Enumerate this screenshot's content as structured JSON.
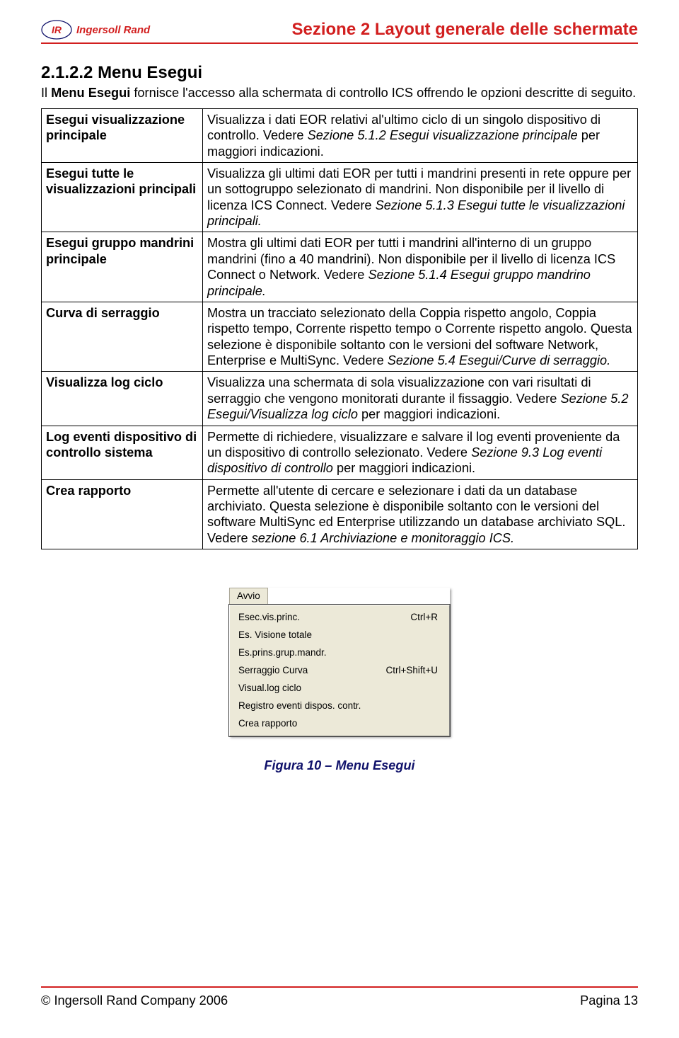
{
  "colors": {
    "accent": "#d21f1f",
    "navy": "#10126b",
    "text": "#000000",
    "menu_bg": "#ece9d8",
    "menu_border_light": "#ffffff",
    "menu_border_dark": "#808080",
    "menu_border_outer": "#404040",
    "tab_border": "#aca899"
  },
  "header": {
    "brand": "Ingersoll Rand",
    "section_title": "Sezione 2 Layout generale delle schermate"
  },
  "heading": "2.1.2.2 Menu Esegui",
  "intro_prefix": "Il ",
  "intro_bold": "Menu Esegui",
  "intro_suffix": " fornisce l'accesso alla schermata di controllo ICS offrendo le opzioni descritte di seguito.",
  "rows": [
    {
      "term": "Esegui visualizzazione principale",
      "desc_plain1": "Visualizza i dati EOR relativi al'ultimo ciclo di un singolo dispositivo di controllo. Vedere ",
      "desc_italic1": "Sezione 5.1.2 Esegui visualizzazione principale",
      "desc_plain2": "  per maggiori indicazioni."
    },
    {
      "term": "Esegui tutte le visualizzazioni principali",
      "desc_plain1": "Visualizza gli ultimi dati EOR per tutti i mandrini presenti in rete oppure per un sottogruppo selezionato di mandrini. Non disponibile per il livello di licenza ICS Connect. Vedere ",
      "desc_italic1": "Sezione 5.1.3 Esegui tutte le visualizzazioni principali.",
      "desc_plain2": ""
    },
    {
      "term": "Esegui gruppo mandrini principale",
      "desc_plain1": "Mostra gli ultimi dati EOR per tutti i mandrini all'interno di un gruppo mandrini (fino a 40 mandrini). Non disponibile per il livello di licenza ICS Connect o Network. Vedere ",
      "desc_italic1": "Sezione 5.1.4 Esegui gruppo mandrino principale.",
      "desc_plain2": ""
    },
    {
      "term": "Curva di serraggio",
      "desc_plain1": "Mostra un tracciato selezionato della Coppia rispetto angolo, Coppia rispetto tempo, Corrente rispetto tempo o Corrente rispetto angolo. Questa selezione è disponibile soltanto con le versioni del software Network, Enterprise e MultiSync. Vedere ",
      "desc_italic1": "Sezione 5.4 Esegui/Curve di serraggio.",
      "desc_plain2": ""
    },
    {
      "term": "Visualizza log ciclo",
      "desc_plain1": "Visualizza una schermata di sola visualizzazione con vari risultati di serraggio che vengono monitorati durante il fissaggio. Vedere ",
      "desc_italic1": "Sezione 5.2 Esegui/Visualizza log ciclo",
      "desc_plain2": "  per maggiori indicazioni."
    },
    {
      "term": "Log eventi dispositivo di controllo sistema",
      "desc_plain1": "Permette di richiedere, visualizzare e salvare il log eventi proveniente da un dispositivo di controllo selezionato. Vedere ",
      "desc_italic1": "Sezione 9.3 Log eventi dispositivo di controllo",
      "desc_plain2": " per maggiori indicazioni."
    },
    {
      "term": "Crea rapporto",
      "desc_plain1": "Permette all'utente di cercare e selezionare i dati da un database archiviato. Questa selezione è disponibile soltanto con le versioni del software MultiSync ed Enterprise utilizzando un database archiviato SQL. Vedere ",
      "desc_italic1": "sezione 6.1 Archiviazione e monitoraggio ICS.",
      "desc_plain2": ""
    }
  ],
  "menu": {
    "tab": "Avvio",
    "items": [
      {
        "label": "Esec.vis.princ.",
        "shortcut": "Ctrl+R"
      },
      {
        "label": "Es. Visione totale",
        "shortcut": ""
      },
      {
        "label": "Es.prins.grup.mandr.",
        "shortcut": ""
      },
      {
        "label": "Serraggio Curva",
        "shortcut": "Ctrl+Shift+U"
      },
      {
        "label": "Visual.log ciclo",
        "shortcut": ""
      },
      {
        "label": "Registro eventi dispos. contr.",
        "shortcut": ""
      },
      {
        "label": "Crea rapporto",
        "shortcut": ""
      }
    ]
  },
  "caption": "Figura 10 – Menu Esegui",
  "footer": {
    "left": "© Ingersoll Rand Company 2006",
    "right": "Pagina  13"
  }
}
